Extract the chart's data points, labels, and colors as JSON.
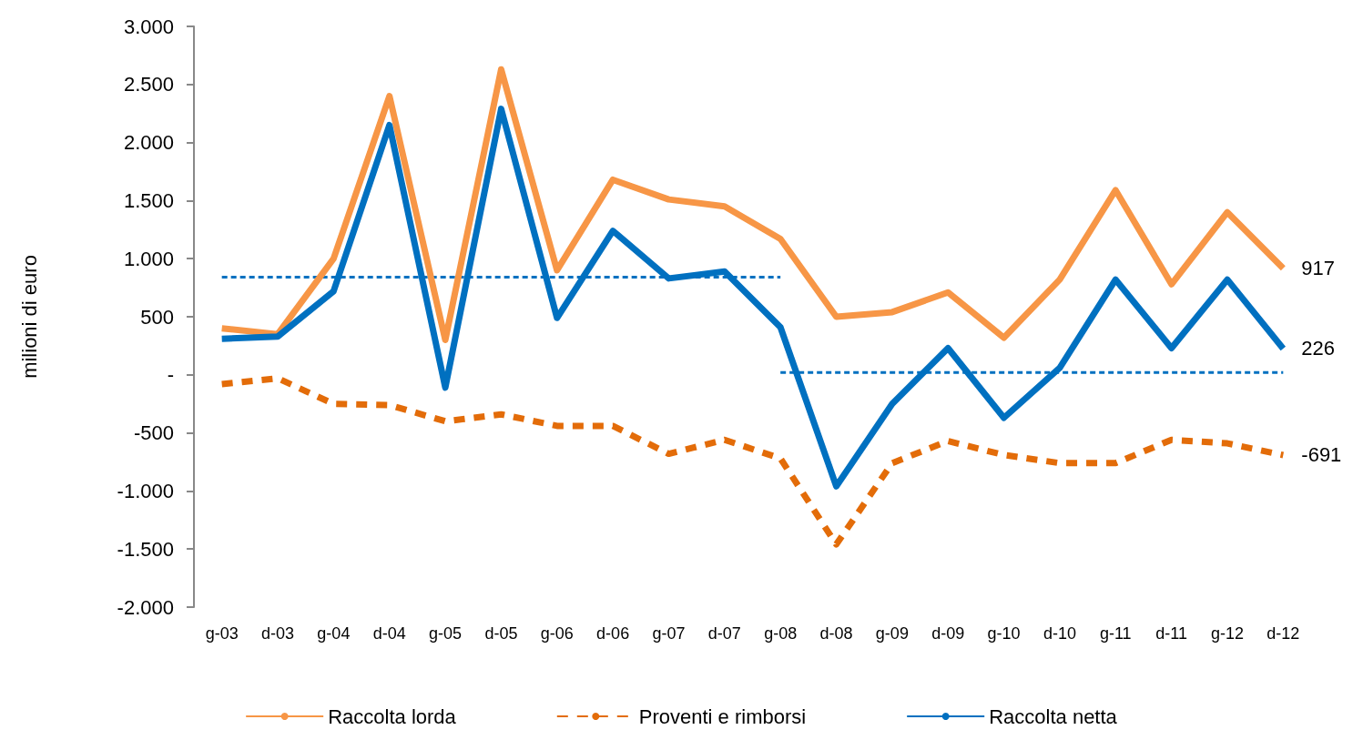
{
  "chart_data": {
    "type": "line",
    "ylabel": "milioni di euro",
    "categories": [
      "g-03",
      "d-03",
      "g-04",
      "d-04",
      "g-05",
      "d-05",
      "g-06",
      "d-06",
      "g-07",
      "d-07",
      "g-08",
      "d-08",
      "g-09",
      "d-09",
      "g-10",
      "d-10",
      "g-11",
      "d-11",
      "g-12",
      "d-12"
    ],
    "series": [
      {
        "name": "Raccolta lorda",
        "color": "#f79646",
        "line_style": "solid",
        "values": [
          400,
          350,
          1000,
          2400,
          300,
          2630,
          900,
          1680,
          1510,
          1450,
          1170,
          500,
          540,
          710,
          320,
          820,
          1590,
          780,
          1400,
          917
        ],
        "value_labels": [
          null,
          null,
          null,
          null,
          null,
          null,
          null,
          null,
          null,
          null,
          null,
          null,
          null,
          null,
          null,
          null,
          null,
          null,
          null,
          "917"
        ]
      },
      {
        "name": "Proventi e rimborsi",
        "color": "#e36c09",
        "line_style": "dashed",
        "values": [
          -80,
          -30,
          -250,
          -260,
          -400,
          -340,
          -440,
          -440,
          -680,
          -560,
          -720,
          -1460,
          -760,
          -570,
          -690,
          -760,
          -760,
          -560,
          -590,
          -691
        ],
        "value_labels": [
          null,
          null,
          null,
          null,
          null,
          null,
          null,
          null,
          null,
          null,
          null,
          null,
          null,
          null,
          null,
          null,
          null,
          null,
          null,
          "-691"
        ]
      },
      {
        "name": "Raccolta netta",
        "color": "#0070c0",
        "line_style": "solid",
        "values": [
          310,
          330,
          720,
          2150,
          -110,
          2290,
          490,
          1240,
          830,
          890,
          410,
          -960,
          -250,
          230,
          -370,
          60,
          820,
          230,
          820,
          226
        ],
        "value_labels": [
          null,
          null,
          null,
          null,
          null,
          null,
          null,
          null,
          null,
          null,
          null,
          null,
          null,
          null,
          null,
          null,
          null,
          null,
          null,
          "226"
        ]
      },
      {
        "color": "#0070c0",
        "line_style": "dotted",
        "values": [
          840,
          840,
          840,
          840,
          840,
          840,
          840,
          840,
          840,
          840,
          840,
          null,
          null,
          null,
          null,
          null,
          null,
          null,
          null,
          null
        ]
      },
      {
        "color": "#0070c0",
        "line_style": "dotted",
        "values": [
          null,
          null,
          null,
          null,
          null,
          null,
          null,
          null,
          null,
          null,
          20,
          20,
          20,
          20,
          20,
          20,
          20,
          20,
          20,
          20
        ]
      }
    ],
    "ylim": [
      -2000,
      3000
    ],
    "yticks": [
      {
        "value": -2000,
        "label": "-2.000"
      },
      {
        "value": -1500,
        "label": "-1.500"
      },
      {
        "value": -1000,
        "label": "-1.000"
      },
      {
        "value": -500,
        "label": "-500"
      },
      {
        "value": 0,
        "label": "-"
      },
      {
        "value": 500,
        "label": "500"
      },
      {
        "value": 1000,
        "label": "1.000"
      },
      {
        "value": 1500,
        "label": "1.500"
      },
      {
        "value": 2000,
        "label": "2.000"
      },
      {
        "value": 2500,
        "label": "2.500"
      },
      {
        "value": 3000,
        "label": "3.000"
      }
    ],
    "grid": false,
    "legend": "bottom",
    "marker": "none"
  }
}
